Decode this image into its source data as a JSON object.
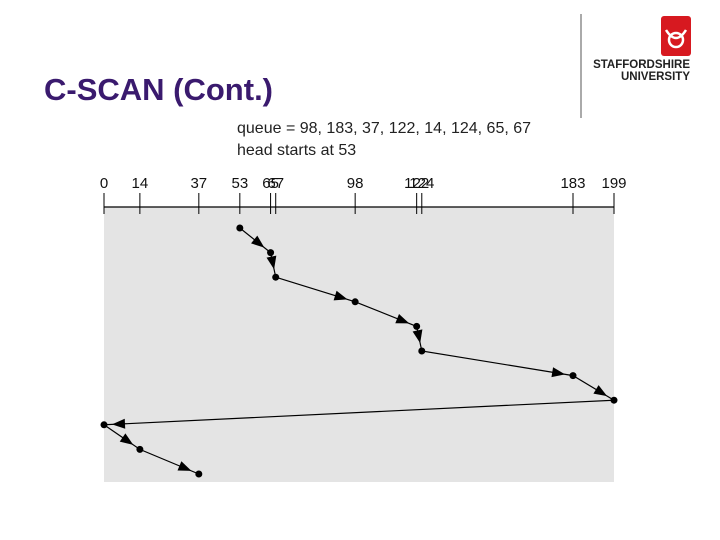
{
  "title": "C-SCAN (Cont.)",
  "logo": {
    "line1": "STAFFORDSHIRE",
    "line2": "UNIVERSITY"
  },
  "caption": [
    "queue = 98, 183, 37, 122, 14, 124, 65, 67",
    "head starts at 53"
  ],
  "chart_data": {
    "type": "line",
    "x": [
      53,
      65,
      67,
      98,
      122,
      124,
      183,
      199,
      0,
      14,
      37
    ],
    "xlim": [
      0,
      199
    ],
    "xticks": [
      0,
      14,
      37,
      53,
      65,
      67,
      98,
      122,
      124,
      183,
      199
    ],
    "color": "#000000",
    "background": "#e4e4e4"
  }
}
